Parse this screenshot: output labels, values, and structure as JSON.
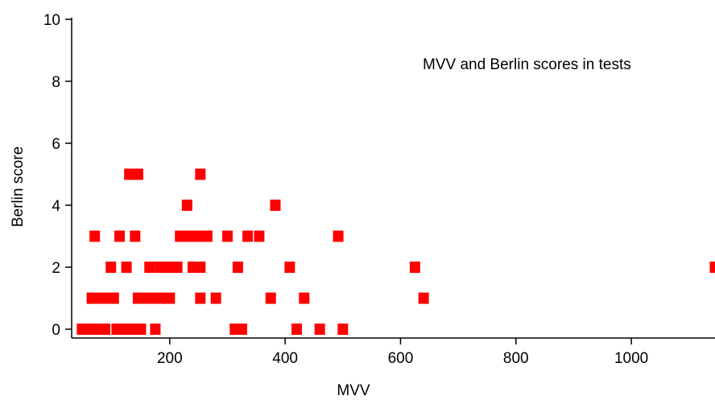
{
  "chart_data": {
    "type": "scatter",
    "title": "MVV and Berlin scores in tests",
    "xlabel": "MVV",
    "ylabel": "Berlin score",
    "xlim": [
      30,
      1145
    ],
    "ylim": [
      0,
      10
    ],
    "xticks": [
      200,
      400,
      600,
      800,
      1000
    ],
    "yticks": [
      0,
      2,
      4,
      6,
      8,
      10
    ],
    "grid": false,
    "marker": "square",
    "color": "#ff0000",
    "series": [
      {
        "x": [
          48,
          58,
          68,
          78,
          88,
          108,
          118,
          130,
          140,
          150,
          175,
          313,
          325,
          420,
          460,
          500,
          65,
          75,
          88,
          103,
          145,
          158,
          170,
          183,
          200,
          253,
          280,
          375,
          433,
          640,
          98,
          125,
          165,
          183,
          193,
          203,
          213,
          240,
          253,
          318,
          408,
          625,
          1145,
          70,
          113,
          140,
          218,
          233,
          250,
          265,
          300,
          335,
          355,
          492,
          230,
          383,
          130,
          145,
          253
        ],
        "y": [
          0,
          0,
          0,
          0,
          0,
          0,
          0,
          0,
          0,
          0,
          0,
          0,
          0,
          0,
          0,
          0,
          1,
          1,
          1,
          1,
          1,
          1,
          1,
          1,
          1,
          1,
          1,
          1,
          1,
          1,
          2,
          2,
          2,
          2,
          2,
          2,
          2,
          2,
          2,
          2,
          2,
          2,
          2,
          3,
          3,
          3,
          3,
          3,
          3,
          3,
          3,
          3,
          3,
          3,
          4,
          4,
          5,
          5,
          5
        ]
      }
    ]
  }
}
